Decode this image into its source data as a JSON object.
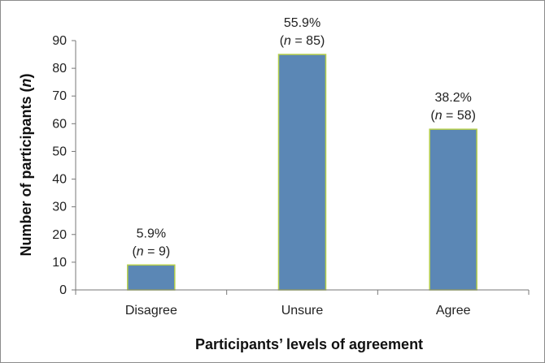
{
  "chart_data": {
    "type": "bar",
    "categories": [
      "Disagree",
      "Unsure",
      "Agree"
    ],
    "values": [
      9,
      85,
      58
    ],
    "data_labels": [
      {
        "pct": "5.9%",
        "n_italic": "n",
        "n_rest": " = 9)"
      },
      {
        "pct": "55.9%",
        "n_italic": "n",
        "n_rest": " = 85)"
      },
      {
        "pct": "38.2%",
        "n_italic": "n",
        "n_rest": " = 58)"
      }
    ],
    "xlabel": "Participants’ levels of agreement",
    "ylabel_prefix": "Number of participants (",
    "ylabel_italic": "n",
    "ylabel_suffix": ")",
    "ylim": [
      0,
      90
    ],
    "yticks": [
      0,
      10,
      20,
      30,
      40,
      50,
      60,
      70,
      80,
      90
    ],
    "grid": false,
    "bar_color": "#5b87b5",
    "bar_edge_color": "#b5cf4a"
  }
}
